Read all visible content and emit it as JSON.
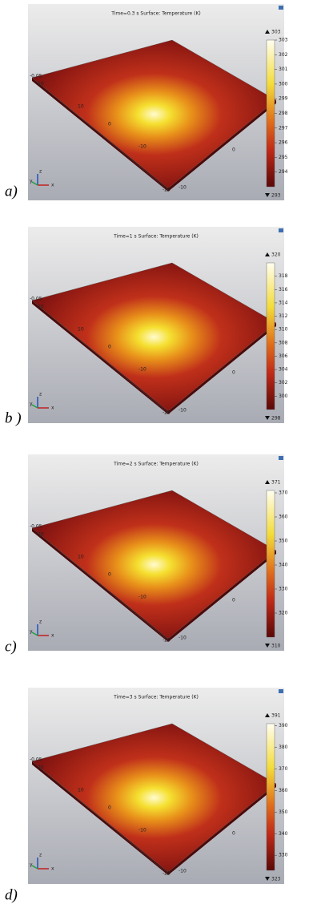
{
  "panels": [
    {
      "label": "a)",
      "title": "Time=0.3 s  Surface: Temperature (K)",
      "max": 303,
      "min": 293,
      "ticks": [
        294,
        295,
        296,
        297,
        298,
        299,
        300,
        301,
        302,
        303
      ],
      "axis_labels": [
        "-0.05",
        "20",
        "10",
        "0",
        "-10",
        "-20",
        "-10",
        "0"
      ],
      "triad": [
        "y",
        "z",
        "x"
      ]
    },
    {
      "label": "b )",
      "title": "Time=1 s  Surface: Temperature (K)",
      "max": 320,
      "min": 298,
      "ticks": [
        300,
        302,
        304,
        306,
        308,
        310,
        312,
        314,
        316,
        318
      ],
      "axis_labels": [
        "-0.05",
        "20",
        "10",
        "0",
        "-10",
        "-20",
        "-10",
        "0"
      ],
      "triad": [
        "y",
        "z",
        "x"
      ]
    },
    {
      "label": "c)",
      "title": "Time=2 s  Surface: Temperature (K)",
      "max": 371,
      "min": 310,
      "ticks": [
        320,
        330,
        340,
        350,
        360,
        370
      ],
      "axis_labels": [
        "-0.05",
        "20",
        "10",
        "0",
        "-10",
        "-20",
        "-10",
        "0"
      ],
      "triad": [
        "y",
        "z",
        "x"
      ]
    },
    {
      "label": "d)",
      "title": "Time=3 s  Surface: Temperature (K)",
      "max": 391,
      "min": 323,
      "ticks": [
        330,
        340,
        350,
        360,
        370,
        380,
        390
      ],
      "axis_labels": [
        "-0.05",
        "20",
        "10",
        "0",
        "-10",
        "-20",
        "-10",
        "0"
      ],
      "triad": [
        "y",
        "z",
        "x"
      ]
    }
  ]
}
